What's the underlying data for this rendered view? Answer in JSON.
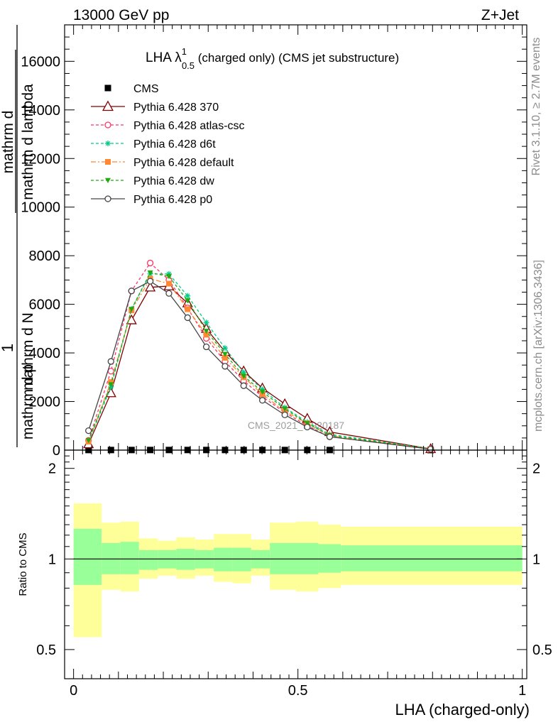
{
  "header": {
    "left": "13000 GeV pp",
    "right": "Z+Jet"
  },
  "title": {
    "main": "LHA λ",
    "sup": "1",
    "sub": "0.5",
    "rest": " (charged only) (CMS jet substructure)"
  },
  "side_labels": {
    "rivet": "Rivet 3.1.10, ≥ 2.7M events",
    "mcplots": "mcplots.cern.ch [arXiv:1306.3436]"
  },
  "watermark": "CMS_2021_I1920187",
  "ylabel_top": {
    "numerator_one": "1",
    "denom_a": "mathrm d N",
    "denom_b": "mathrm d p",
    "fraction_top": "mathrm d",
    "fraction_rest": "mathrm d lambda"
  },
  "ylabel_ratio": "Ratio to CMS",
  "xlabel": "LHA (charged-only)",
  "colors": {
    "band_inner": "#99ff99",
    "band_outer": "#ffff99"
  },
  "chart_data": [
    {
      "type": "line",
      "panel": "main",
      "x": [
        0.0333,
        0.0833,
        0.1291,
        0.1708,
        0.2125,
        0.2541,
        0.2958,
        0.3375,
        0.3791,
        0.4208,
        0.4708,
        0.5208,
        0.5708,
        0.7958
      ],
      "xlim": [
        -0.02,
        1.01
      ],
      "ylim": [
        0,
        17500
      ],
      "yticks": [
        0,
        2000,
        4000,
        6000,
        8000,
        10000,
        12000,
        14000,
        16000
      ],
      "ytick_labels": [
        "0",
        "2000",
        "4000",
        "6000",
        "8000",
        "10000",
        "12000",
        "14000",
        "16000"
      ],
      "series": [
        {
          "name": "CMS",
          "color": "#000000",
          "marker": "square-filled",
          "dash": "none",
          "values": [
            4.0,
            4.5,
            4.8,
            5.0,
            5.1,
            5.2,
            5.2,
            5.1,
            5.0,
            4.8,
            4.5,
            4.2,
            3.8,
            1.0
          ]
        },
        {
          "name": "Pythia 6.428 370",
          "color": "#800000",
          "marker": "triangle-open",
          "dash": "none",
          "values": [
            250,
            2350,
            5350,
            6700,
            6750,
            6050,
            5000,
            4050,
            3250,
            2550,
            1900,
            1300,
            750,
            50
          ]
        },
        {
          "name": "Pythia 6.428 atlas-csc",
          "color": "#ff3366",
          "marker": "circle-open",
          "dash": "4,3",
          "values": [
            400,
            3250,
            6550,
            7700,
            7000,
            5850,
            4600,
            3650,
            2850,
            2200,
            1550,
            1000,
            550,
            50
          ]
        },
        {
          "name": "Pythia 6.428 d6t",
          "color": "#00cc88",
          "marker": "star",
          "dash": "4,3",
          "values": [
            350,
            2600,
            5800,
            7250,
            7250,
            6350,
            5250,
            4200,
            3200,
            2500,
            1750,
            1150,
            650,
            60
          ]
        },
        {
          "name": "Pythia 6.428 default",
          "color": "#ff8833",
          "marker": "square-filled",
          "dash": "7,3,2,3",
          "values": [
            350,
            2800,
            5750,
            7050,
            6850,
            5800,
            4750,
            3800,
            3000,
            2300,
            1600,
            1100,
            600,
            50
          ]
        },
        {
          "name": "Pythia 6.428 dw",
          "color": "#22aa11",
          "marker": "triangle-down-filled",
          "dash": "4,3",
          "values": [
            400,
            2700,
            5800,
            7300,
            7150,
            6150,
            4900,
            3950,
            3050,
            2400,
            1700,
            1100,
            600,
            50
          ]
        },
        {
          "name": "Pythia 6.428 p0",
          "color": "#444444",
          "marker": "circle-open",
          "dash": "none",
          "values": [
            800,
            3650,
            6550,
            6950,
            6450,
            5450,
            4250,
            3450,
            2650,
            2050,
            1450,
            950,
            550,
            40
          ]
        }
      ]
    },
    {
      "type": "area",
      "panel": "ratio",
      "ylabel": "Ratio to CMS",
      "ylim": [
        0.4,
        2.3
      ],
      "log_scale": true,
      "yticks": [
        0.5,
        1,
        2
      ],
      "ytick_labels": [
        "0.5",
        "1",
        "2"
      ],
      "xlim": [
        -0.02,
        1.01
      ],
      "xticks": [
        0,
        0.5,
        1
      ],
      "xtick_labels": [
        "0",
        "0.5",
        "1"
      ],
      "reference_line": 1,
      "bins": [
        {
          "lo": 0.0,
          "hi": 0.0625,
          "inner": [
            0.82,
            1.26
          ],
          "outer": [
            0.55,
            1.53
          ]
        },
        {
          "lo": 0.0625,
          "hi": 0.104,
          "inner": [
            0.89,
            1.13
          ],
          "outer": [
            0.79,
            1.32
          ]
        },
        {
          "lo": 0.104,
          "hi": 0.1458,
          "inner": [
            0.89,
            1.14
          ],
          "outer": [
            0.78,
            1.33
          ]
        },
        {
          "lo": 0.1458,
          "hi": 0.1875,
          "inner": [
            0.92,
            1.07
          ],
          "outer": [
            0.86,
            1.17
          ]
        },
        {
          "lo": 0.1875,
          "hi": 0.2291,
          "inner": [
            0.93,
            1.07
          ],
          "outer": [
            0.88,
            1.15
          ]
        },
        {
          "lo": 0.2291,
          "hi": 0.2708,
          "inner": [
            0.92,
            1.08
          ],
          "outer": [
            0.86,
            1.18
          ]
        },
        {
          "lo": 0.2708,
          "hi": 0.3125,
          "inner": [
            0.93,
            1.07
          ],
          "outer": [
            0.88,
            1.16
          ]
        },
        {
          "lo": 0.3125,
          "hi": 0.3541,
          "inner": [
            0.91,
            1.09
          ],
          "outer": [
            0.84,
            1.21
          ]
        },
        {
          "lo": 0.3541,
          "hi": 0.3958,
          "inner": [
            0.91,
            1.09
          ],
          "outer": [
            0.83,
            1.21
          ]
        },
        {
          "lo": 0.3958,
          "hi": 0.4375,
          "inner": [
            0.93,
            1.07
          ],
          "outer": [
            0.88,
            1.16
          ]
        },
        {
          "lo": 0.4375,
          "hi": 0.4958,
          "inner": [
            0.89,
            1.13
          ],
          "outer": [
            0.79,
            1.32
          ]
        },
        {
          "lo": 0.4958,
          "hi": 0.5458,
          "inner": [
            0.89,
            1.13
          ],
          "outer": [
            0.78,
            1.33
          ]
        },
        {
          "lo": 0.5458,
          "hi": 0.5958,
          "inner": [
            0.9,
            1.12
          ],
          "outer": [
            0.8,
            1.3
          ]
        },
        {
          "lo": 0.5958,
          "hi": 1.0,
          "inner": [
            0.91,
            1.11
          ],
          "outer": [
            0.82,
            1.28
          ]
        }
      ]
    }
  ]
}
